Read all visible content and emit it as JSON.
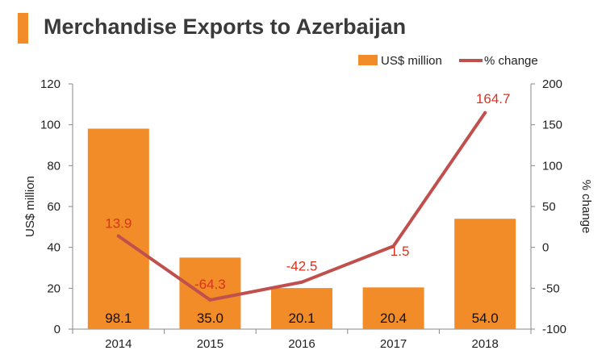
{
  "title": "Merchandise Exports to Azerbaijan",
  "colors": {
    "accent": "#f28c28",
    "bar": "#f28c28",
    "line": "#c0504d",
    "line_label": "#d9321f",
    "axis": "#888888"
  },
  "chart_data": {
    "type": "bar",
    "categories": [
      "2014",
      "2015",
      "2016",
      "2017",
      "2018"
    ],
    "series": [
      {
        "name": "US$ million",
        "type": "bar",
        "axis": "left",
        "values": [
          98.1,
          35.0,
          20.1,
          20.4,
          54.0
        ],
        "labels": [
          "98.1",
          "35.0",
          "20.1",
          "20.4",
          "54.0"
        ]
      },
      {
        "name": "% change",
        "type": "line",
        "axis": "right",
        "values": [
          13.9,
          -64.3,
          -42.5,
          1.5,
          164.7
        ],
        "labels": [
          "13.9",
          "-64.3",
          "-42.5",
          "1.5",
          "164.7"
        ]
      }
    ],
    "ylabel_left": "US$ million",
    "ylabel_right": "% change",
    "ylim_left": [
      0,
      120
    ],
    "ylim_right": [
      -100,
      200
    ],
    "yticks_left": [
      "0",
      "20",
      "40",
      "60",
      "80",
      "100",
      "120"
    ],
    "yticks_right": [
      "-100",
      "-50",
      "0",
      "50",
      "100",
      "150",
      "200"
    ],
    "legend": [
      "US$ million",
      "% change"
    ],
    "legend_position": "top-right",
    "grid": false
  }
}
